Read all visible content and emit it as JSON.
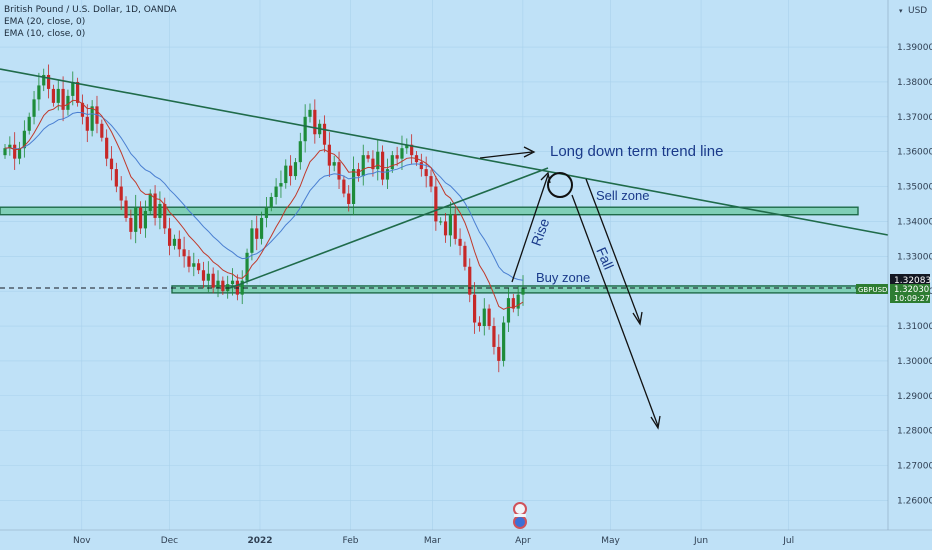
{
  "legend": {
    "title": "British Pound / U.S. Dollar, 1D, OANDA",
    "ema20": "EMA (20, close, 0)",
    "ema10": "EMA (10, close, 0)"
  },
  "currency": "USD",
  "price_tag": {
    "value": "1.32083",
    "color": "#131722"
  },
  "symbol_tag": {
    "symbol": "GBPUSD",
    "price": "1.32030",
    "countdown": "10:09:27",
    "color": "#2e7d32"
  },
  "annotations": {
    "trend": "Long down term trend line",
    "sell": "Sell zone",
    "buy": "Buy zone",
    "rise": "Rise",
    "fall": "Fall"
  },
  "colors": {
    "background": "#bfe1f7",
    "up": "#1e8c3a",
    "down": "#c62828",
    "ema20": "#4a7fd1",
    "ema10": "#c0392b",
    "zone": "#1f6b4a",
    "trend": "#1f6b4a",
    "annotation": "#1a3a8a"
  },
  "chart_data": {
    "type": "candlestick",
    "y_ticks": [
      "1.39000",
      "1.38000",
      "1.37000",
      "1.36000",
      "1.35000",
      "1.34000",
      "1.33000",
      "1.32000",
      "1.31000",
      "1.30000",
      "1.29000",
      "1.28000",
      "1.27000",
      "1.26000"
    ],
    "y_tick_values": [
      1.39,
      1.38,
      1.37,
      1.36,
      1.35,
      1.34,
      1.33,
      1.32,
      1.31,
      1.3,
      1.29,
      1.28,
      1.27,
      1.26
    ],
    "ylim": [
      1.2515,
      1.4035
    ],
    "x_ticks": [
      "Nov",
      "Dec",
      "2022",
      "Feb",
      "Mar",
      "Apr",
      "May",
      "Jun",
      "Jul"
    ],
    "x_tick_days": [
      21,
      51,
      82,
      113,
      141,
      172,
      202,
      233,
      263
    ],
    "x_range_days": [
      -7,
      297
    ],
    "sell_zone": [
      1.3425,
      1.3435
    ],
    "buy_zone": [
      1.3195,
      1.3215
    ],
    "last_price": 1.32083,
    "closes": [
      1.361,
      1.362,
      1.358,
      1.361,
      1.366,
      1.37,
      1.375,
      1.379,
      1.382,
      1.378,
      1.374,
      1.378,
      1.372,
      1.376,
      1.38,
      1.374,
      1.37,
      1.366,
      1.373,
      1.368,
      1.364,
      1.358,
      1.355,
      1.35,
      1.346,
      1.341,
      1.337,
      1.344,
      1.338,
      1.343,
      1.348,
      1.341,
      1.345,
      1.338,
      1.333,
      1.335,
      1.332,
      1.33,
      1.327,
      1.328,
      1.326,
      1.323,
      1.325,
      1.321,
      1.323,
      1.32,
      1.322,
      1.323,
      1.319,
      1.323,
      1.331,
      1.338,
      1.335,
      1.341,
      1.344,
      1.347,
      1.35,
      1.351,
      1.356,
      1.353,
      1.357,
      1.363,
      1.37,
      1.372,
      1.365,
      1.368,
      1.362,
      1.356,
      1.357,
      1.352,
      1.348,
      1.345,
      1.355,
      1.353,
      1.359,
      1.358,
      1.355,
      1.36,
      1.352,
      1.355,
      1.359,
      1.358,
      1.361,
      1.362,
      1.359,
      1.357,
      1.355,
      1.353,
      1.35,
      1.34,
      1.34,
      1.336,
      1.342,
      1.335,
      1.333,
      1.327,
      1.319,
      1.311,
      1.31,
      1.315,
      1.31,
      1.304,
      1.3,
      1.311,
      1.318,
      1.315,
      1.319,
      1.321
    ]
  }
}
